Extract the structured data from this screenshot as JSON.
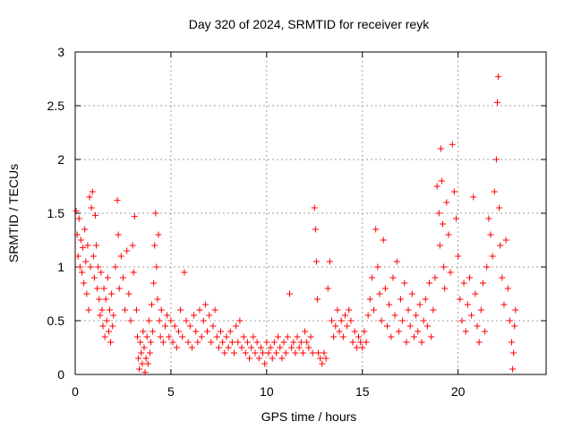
{
  "chart_data": {
    "type": "scatter",
    "title": "Day 320 of 2024, SRMTID for receiver reyk",
    "xlabel": "GPS time / hours",
    "ylabel": "SRMTID / TECUs",
    "xlim": [
      0,
      24.6
    ],
    "ylim": [
      0,
      3
    ],
    "x_ticks": [
      0,
      5,
      10,
      15,
      20
    ],
    "x_tick_labels": [
      "0",
      "5",
      "10",
      "15",
      "20"
    ],
    "y_ticks": [
      0,
      0.5,
      1,
      1.5,
      2,
      2.5,
      3
    ],
    "y_tick_labels": [
      "0",
      "0.5",
      "1",
      "1.5",
      "2",
      "2.5",
      "3"
    ],
    "grid": true,
    "marker": "+",
    "marker_color": "#ff0000",
    "series": [
      {
        "name": "reyk",
        "points": [
          [
            0.05,
            1.52
          ],
          [
            0.1,
            1.3
          ],
          [
            0.15,
            1.1
          ],
          [
            0.2,
            1.45
          ],
          [
            0.25,
            1.0
          ],
          [
            0.3,
            1.25
          ],
          [
            0.35,
            0.95
          ],
          [
            0.4,
            1.18
          ],
          [
            0.45,
            0.85
          ],
          [
            0.5,
            1.35
          ],
          [
            0.55,
            1.05
          ],
          [
            0.6,
            0.75
          ],
          [
            0.65,
            1.2
          ],
          [
            0.7,
            0.6
          ],
          [
            0.75,
            1.65
          ],
          [
            0.8,
            1.0
          ],
          [
            0.85,
            1.55
          ],
          [
            0.9,
            1.7
          ],
          [
            0.95,
            1.1
          ],
          [
            1.0,
            0.9
          ],
          [
            1.05,
            1.48
          ],
          [
            1.1,
            1.2
          ],
          [
            1.15,
            0.8
          ],
          [
            1.2,
            1.0
          ],
          [
            1.25,
            0.7
          ],
          [
            1.3,
            0.55
          ],
          [
            1.35,
            0.95
          ],
          [
            1.4,
            0.6
          ],
          [
            1.45,
            0.45
          ],
          [
            1.5,
            0.8
          ],
          [
            1.55,
            0.35
          ],
          [
            1.6,
            0.7
          ],
          [
            1.65,
            0.5
          ],
          [
            1.7,
            0.9
          ],
          [
            1.75,
            0.4
          ],
          [
            1.8,
            0.6
          ],
          [
            1.85,
            0.3
          ],
          [
            1.9,
            0.75
          ],
          [
            1.95,
            0.45
          ],
          [
            2.0,
            0.55
          ],
          [
            2.1,
            1.0
          ],
          [
            2.2,
            1.62
          ],
          [
            2.25,
            1.3
          ],
          [
            2.3,
            0.8
          ],
          [
            2.4,
            1.1
          ],
          [
            2.5,
            0.9
          ],
          [
            2.6,
            0.6
          ],
          [
            2.7,
            1.15
          ],
          [
            2.8,
            0.75
          ],
          [
            2.9,
            0.5
          ],
          [
            3.0,
            1.2
          ],
          [
            3.05,
            0.95
          ],
          [
            3.1,
            1.47
          ],
          [
            3.2,
            0.6
          ],
          [
            3.25,
            0.35
          ],
          [
            3.3,
            0.15
          ],
          [
            3.35,
            0.05
          ],
          [
            3.4,
            0.3
          ],
          [
            3.45,
            0.2
          ],
          [
            3.5,
            0.1
          ],
          [
            3.55,
            0.4
          ],
          [
            3.6,
            0.25
          ],
          [
            3.65,
            0.02
          ],
          [
            3.7,
            0.15
          ],
          [
            3.75,
            0.35
          ],
          [
            3.8,
            0.1
          ],
          [
            3.85,
            0.5
          ],
          [
            3.9,
            0.2
          ],
          [
            3.95,
            0.3
          ],
          [
            4.0,
            0.65
          ],
          [
            4.05,
            0.4
          ],
          [
            4.1,
            0.85
          ],
          [
            4.15,
            1.2
          ],
          [
            4.2,
            1.5
          ],
          [
            4.25,
            1.0
          ],
          [
            4.3,
            0.7
          ],
          [
            4.35,
            1.3
          ],
          [
            4.4,
            0.5
          ],
          [
            4.45,
            0.35
          ],
          [
            4.5,
            0.6
          ],
          [
            4.6,
            0.3
          ],
          [
            4.7,
            0.45
          ],
          [
            4.8,
            0.55
          ],
          [
            4.9,
            0.35
          ],
          [
            5.0,
            0.5
          ],
          [
            5.1,
            0.3
          ],
          [
            5.2,
            0.45
          ],
          [
            5.3,
            0.25
          ],
          [
            5.4,
            0.4
          ],
          [
            5.5,
            0.6
          ],
          [
            5.6,
            0.35
          ],
          [
            5.7,
            0.95
          ],
          [
            5.8,
            0.5
          ],
          [
            5.9,
            0.3
          ],
          [
            6.0,
            0.45
          ],
          [
            6.1,
            0.25
          ],
          [
            6.2,
            0.55
          ],
          [
            6.3,
            0.4
          ],
          [
            6.4,
            0.3
          ],
          [
            6.5,
            0.6
          ],
          [
            6.6,
            0.35
          ],
          [
            6.7,
            0.5
          ],
          [
            6.8,
            0.65
          ],
          [
            6.9,
            0.4
          ],
          [
            7.0,
            0.55
          ],
          [
            7.1,
            0.3
          ],
          [
            7.2,
            0.45
          ],
          [
            7.3,
            0.6
          ],
          [
            7.4,
            0.35
          ],
          [
            7.5,
            0.25
          ],
          [
            7.6,
            0.4
          ],
          [
            7.7,
            0.3
          ],
          [
            7.8,
            0.2
          ],
          [
            7.9,
            0.35
          ],
          [
            8.0,
            0.25
          ],
          [
            8.1,
            0.4
          ],
          [
            8.2,
            0.3
          ],
          [
            8.3,
            0.2
          ],
          [
            8.4,
            0.45
          ],
          [
            8.5,
            0.3
          ],
          [
            8.6,
            0.5
          ],
          [
            8.7,
            0.25
          ],
          [
            8.8,
            0.35
          ],
          [
            8.9,
            0.2
          ],
          [
            9.0,
            0.3
          ],
          [
            9.1,
            0.15
          ],
          [
            9.2,
            0.25
          ],
          [
            9.3,
            0.35
          ],
          [
            9.4,
            0.2
          ],
          [
            9.5,
            0.3
          ],
          [
            9.6,
            0.15
          ],
          [
            9.7,
            0.25
          ],
          [
            9.8,
            0.2
          ],
          [
            9.9,
            0.1
          ],
          [
            10.0,
            0.3
          ],
          [
            10.1,
            0.2
          ],
          [
            10.2,
            0.25
          ],
          [
            10.3,
            0.15
          ],
          [
            10.4,
            0.3
          ],
          [
            10.5,
            0.2
          ],
          [
            10.6,
            0.35
          ],
          [
            10.7,
            0.25
          ],
          [
            10.8,
            0.15
          ],
          [
            10.9,
            0.3
          ],
          [
            11.0,
            0.2
          ],
          [
            11.1,
            0.35
          ],
          [
            11.2,
            0.75
          ],
          [
            11.3,
            0.25
          ],
          [
            11.4,
            0.3
          ],
          [
            11.5,
            0.2
          ],
          [
            11.6,
            0.35
          ],
          [
            11.7,
            0.25
          ],
          [
            11.8,
            0.3
          ],
          [
            11.9,
            0.2
          ],
          [
            12.0,
            0.4
          ],
          [
            12.1,
            0.3
          ],
          [
            12.2,
            0.25
          ],
          [
            12.3,
            0.35
          ],
          [
            12.4,
            0.2
          ],
          [
            12.5,
            1.55
          ],
          [
            12.55,
            1.35
          ],
          [
            12.6,
            1.05
          ],
          [
            12.65,
            0.7
          ],
          [
            12.7,
            0.2
          ],
          [
            12.8,
            0.15
          ],
          [
            12.9,
            0.1
          ],
          [
            13.0,
            0.2
          ],
          [
            13.1,
            0.15
          ],
          [
            13.2,
            0.8
          ],
          [
            13.3,
            1.05
          ],
          [
            13.4,
            0.5
          ],
          [
            13.5,
            0.35
          ],
          [
            13.6,
            0.45
          ],
          [
            13.7,
            0.6
          ],
          [
            13.8,
            0.4
          ],
          [
            13.9,
            0.5
          ],
          [
            14.0,
            0.35
          ],
          [
            14.1,
            0.55
          ],
          [
            14.2,
            0.45
          ],
          [
            14.3,
            0.6
          ],
          [
            14.4,
            0.5
          ],
          [
            14.5,
            0.3
          ],
          [
            14.6,
            0.4
          ],
          [
            14.7,
            0.25
          ],
          [
            14.8,
            0.35
          ],
          [
            14.9,
            0.3
          ],
          [
            15.0,
            0.25
          ],
          [
            15.1,
            0.4
          ],
          [
            15.2,
            0.3
          ],
          [
            15.3,
            0.55
          ],
          [
            15.4,
            0.7
          ],
          [
            15.5,
            0.9
          ],
          [
            15.6,
            0.6
          ],
          [
            15.7,
            1.35
          ],
          [
            15.8,
            1.0
          ],
          [
            15.9,
            0.75
          ],
          [
            16.0,
            0.5
          ],
          [
            16.1,
            1.25
          ],
          [
            16.2,
            0.8
          ],
          [
            16.3,
            0.45
          ],
          [
            16.4,
            0.65
          ],
          [
            16.5,
            0.35
          ],
          [
            16.6,
            0.9
          ],
          [
            16.7,
            0.55
          ],
          [
            16.8,
            1.05
          ],
          [
            16.9,
            0.4
          ],
          [
            17.0,
            0.7
          ],
          [
            17.1,
            0.5
          ],
          [
            17.2,
            0.85
          ],
          [
            17.3,
            0.3
          ],
          [
            17.4,
            0.6
          ],
          [
            17.5,
            0.45
          ],
          [
            17.6,
            0.75
          ],
          [
            17.7,
            0.35
          ],
          [
            17.8,
            0.55
          ],
          [
            17.9,
            0.4
          ],
          [
            18.0,
            0.65
          ],
          [
            18.1,
            0.3
          ],
          [
            18.2,
            0.5
          ],
          [
            18.3,
            0.7
          ],
          [
            18.4,
            0.45
          ],
          [
            18.5,
            0.85
          ],
          [
            18.6,
            0.35
          ],
          [
            18.7,
            0.6
          ],
          [
            18.8,
            0.9
          ],
          [
            18.9,
            1.75
          ],
          [
            19.0,
            1.5
          ],
          [
            19.05,
            1.2
          ],
          [
            19.1,
            2.1
          ],
          [
            19.15,
            1.8
          ],
          [
            19.2,
            1.4
          ],
          [
            19.25,
            1.0
          ],
          [
            19.3,
            0.8
          ],
          [
            19.4,
            1.6
          ],
          [
            19.5,
            1.3
          ],
          [
            19.6,
            0.95
          ],
          [
            19.7,
            2.14
          ],
          [
            19.8,
            1.7
          ],
          [
            19.9,
            1.45
          ],
          [
            20.0,
            1.1
          ],
          [
            20.1,
            0.7
          ],
          [
            20.2,
            0.5
          ],
          [
            20.3,
            0.85
          ],
          [
            20.4,
            0.4
          ],
          [
            20.5,
            0.65
          ],
          [
            20.6,
            0.9
          ],
          [
            20.7,
            0.55
          ],
          [
            20.8,
            1.65
          ],
          [
            20.9,
            0.75
          ],
          [
            21.0,
            0.45
          ],
          [
            21.1,
            0.3
          ],
          [
            21.2,
            0.6
          ],
          [
            21.3,
            0.85
          ],
          [
            21.4,
            0.4
          ],
          [
            21.5,
            1.0
          ],
          [
            21.6,
            1.45
          ],
          [
            21.7,
            1.3
          ],
          [
            21.8,
            1.1
          ],
          [
            21.9,
            1.7
          ],
          [
            22.0,
            2.0
          ],
          [
            22.05,
            2.53
          ],
          [
            22.1,
            2.77
          ],
          [
            22.15,
            1.55
          ],
          [
            22.2,
            1.2
          ],
          [
            22.3,
            0.9
          ],
          [
            22.4,
            0.65
          ],
          [
            22.5,
            1.25
          ],
          [
            22.6,
            0.8
          ],
          [
            22.7,
            0.5
          ],
          [
            22.8,
            0.3
          ],
          [
            22.85,
            0.05
          ],
          [
            22.9,
            0.2
          ],
          [
            22.95,
            0.45
          ],
          [
            23.0,
            0.6
          ]
        ]
      }
    ]
  }
}
